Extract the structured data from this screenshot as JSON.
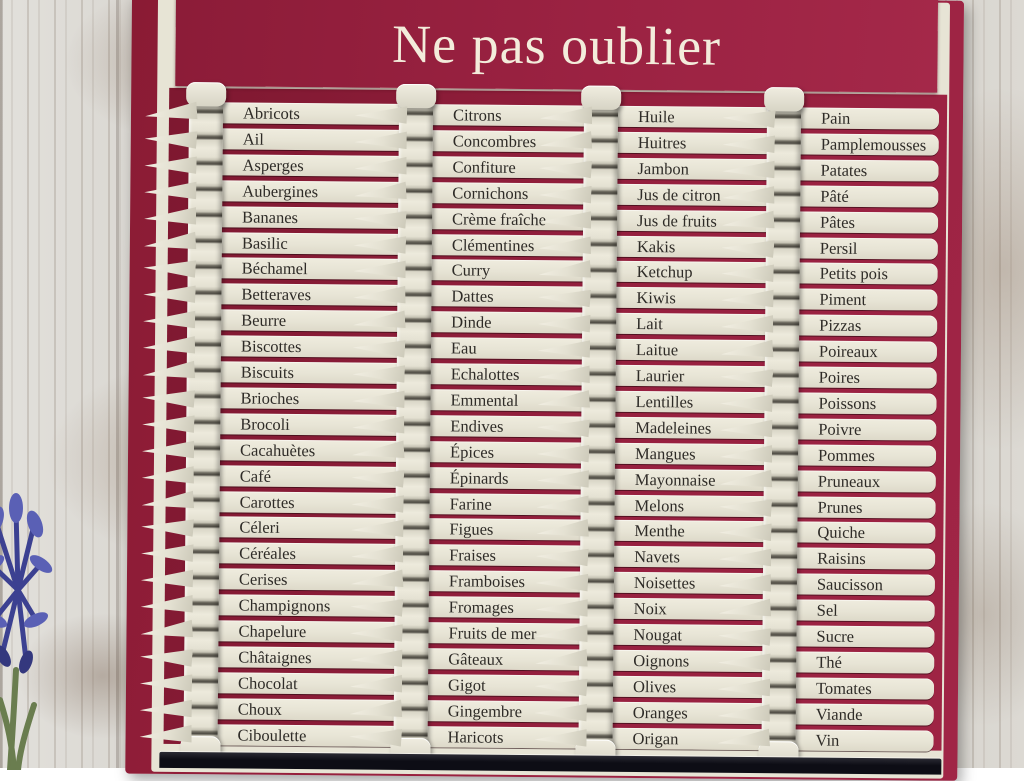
{
  "title": "Ne pas oublier",
  "board": {
    "columns": [
      {
        "items": [
          "Abricots",
          "Ail",
          "Asperges",
          "Aubergines",
          "Bananes",
          "Basilic",
          "Béchamel",
          "Betteraves",
          "Beurre",
          "Biscottes",
          "Biscuits",
          "Brioches",
          "Brocoli",
          "Cacahuètes",
          "Café",
          "Carottes",
          "Céleri",
          "Céréales",
          "Cerises",
          "Champignons",
          "Chapelure",
          "Châtaignes",
          "Chocolat",
          "Choux",
          "Ciboulette"
        ]
      },
      {
        "items": [
          "Citrons",
          "Concombres",
          "Confiture",
          "Cornichons",
          "Crème fraîche",
          "Clémentines",
          "Curry",
          "Dattes",
          "Dinde",
          "Eau",
          "Echalottes",
          "Emmental",
          "Endives",
          "Épices",
          "Épinards",
          "Farine",
          "Figues",
          "Fraises",
          "Framboises",
          "Fromages",
          "Fruits de mer",
          "Gâteaux",
          "Gigot",
          "Gingembre",
          "Haricots"
        ]
      },
      {
        "items": [
          "Huile",
          "Huitres",
          "Jambon",
          "Jus de citron",
          "Jus de fruits",
          "Kakis",
          "Ketchup",
          "Kiwis",
          "Lait",
          "Laitue",
          "Laurier",
          "Lentilles",
          "Madeleines",
          "Mangues",
          "Mayonnaise",
          "Melons",
          "Menthe",
          "Navets",
          "Noisettes",
          "Noix",
          "Nougat",
          "Oignons",
          "Olives",
          "Oranges",
          "Origan"
        ]
      },
      {
        "items": [
          "Pain",
          "Pamplemousses",
          "Patates",
          "Pâté",
          "Pâtes",
          "Persil",
          "Petits pois",
          "Piment",
          "Pizzas",
          "Poireaux",
          "Poires",
          "Poissons",
          "Poivre",
          "Pommes",
          "Pruneaux",
          "Prunes",
          "Quiche",
          "Raisins",
          "Saucisson",
          "Sel",
          "Sucre",
          "Thé",
          "Tomates",
          "Viande",
          "Vin"
        ]
      }
    ]
  },
  "decor": {
    "flower": "blue-flower"
  },
  "colors": {
    "board_red": "#97203f",
    "strip_cream": "#e9e6d8",
    "label_text": "#2e2b27",
    "title_text": "#f3ecdb",
    "chalk_black": "#0d0d15",
    "flower_blue": "#4247a0"
  }
}
